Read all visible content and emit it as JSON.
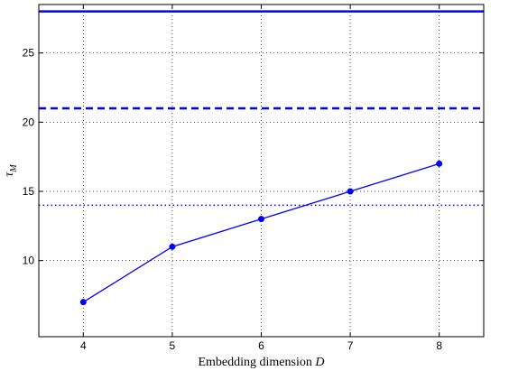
{
  "chart_data": {
    "type": "line",
    "xlabel": "Embedding dimension D",
    "ylabel": "τ_M",
    "xlim": [
      3.5,
      8.5
    ],
    "ylim": [
      4.5,
      28.5
    ],
    "x_ticks": [
      4,
      5,
      6,
      7,
      8
    ],
    "y_ticks": [
      10,
      15,
      20,
      25
    ],
    "grid": true,
    "color": "#0000ff",
    "series": [
      {
        "style": "line-with-markers",
        "x": [
          4,
          5,
          6,
          7,
          8
        ],
        "values": [
          7,
          11,
          13,
          15,
          17
        ]
      }
    ],
    "reference_lines": [
      {
        "y": 28,
        "style": "solid"
      },
      {
        "y": 21,
        "style": "dashed"
      },
      {
        "y": 14,
        "style": "dotted"
      }
    ]
  }
}
